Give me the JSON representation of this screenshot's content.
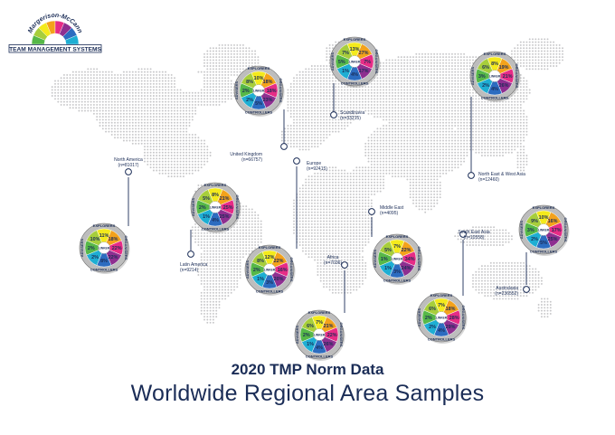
{
  "logo": {
    "line1": "Margerison-McCann",
    "line2": "TEAM MANAGEMENT SYSTEMS"
  },
  "title": {
    "line1": "2020 TMP Norm Data",
    "line2": "Worldwide Regional Area Samples"
  },
  "wheel_labels": {
    "top": "EXPLORERS",
    "right": "ORGANISERS",
    "bottom": "CONTROLLERS",
    "left": "ADVISERS",
    "center": "LINKER"
  },
  "sector_colors": [
    "#f4ea1c",
    "#f3a21b",
    "#e62c86",
    "#8e2f90",
    "#2c6cc0",
    "#1eaed3",
    "#56b848",
    "#a7ce3b"
  ],
  "regions": [
    {
      "name": "United Kingdom",
      "sample": "(n=66757)",
      "values": [
        "10%",
        "18%",
        "18%",
        "23%",
        "5%",
        "2%",
        "2%",
        "8%"
      ]
    },
    {
      "name": "Scandinavia",
      "sample": "(n=33215)",
      "values": [
        "13%",
        "27%",
        "7%",
        "17%",
        "4%",
        "1%",
        "5%",
        "7%"
      ]
    },
    {
      "name": "North East & West Asia",
      "sample": "(n=12460)",
      "values": [
        "8%",
        "19%",
        "21%",
        "26%",
        "4%",
        "2%",
        "3%",
        "6%"
      ]
    },
    {
      "name": "North America",
      "sample": "(n=81017)",
      "values": [
        "11%",
        "18%",
        "22%",
        "22%",
        "8%",
        "2%",
        "2%",
        "10%"
      ]
    },
    {
      "name": "Latin America",
      "sample": "(n=9214)",
      "values": [
        "8%",
        "21%",
        "25%",
        "25%",
        "4%",
        "1%",
        "2%",
        "5%"
      ]
    },
    {
      "name": "Europe",
      "sample": "(n=92415)",
      "values": [
        "12%",
        "22%",
        "16%",
        "20%",
        "3%",
        "1%",
        "2%",
        "8%"
      ]
    },
    {
      "name": "Middle East",
      "sample": "(n=4095)",
      "values": [
        "7%",
        "22%",
        "34%",
        "24%",
        "3%",
        "1%",
        "1%",
        "5%"
      ]
    },
    {
      "name": "Africa",
      "sample": "(n=7036)",
      "values": [
        "7%",
        "21%",
        "22%",
        "26%",
        "4%",
        "1%",
        "2%",
        "6%"
      ]
    },
    {
      "name": "South East Asia",
      "sample": "(n=10558)",
      "values": [
        "7%",
        "18%",
        "28%",
        "29%",
        "4%",
        "2%",
        "2%",
        "6%"
      ]
    },
    {
      "name": "Australasia",
      "sample": "(n=236552)",
      "values": [
        "10%",
        "16%",
        "17%",
        "25%",
        "5%",
        "2%",
        "3%",
        "9%"
      ]
    }
  ]
}
